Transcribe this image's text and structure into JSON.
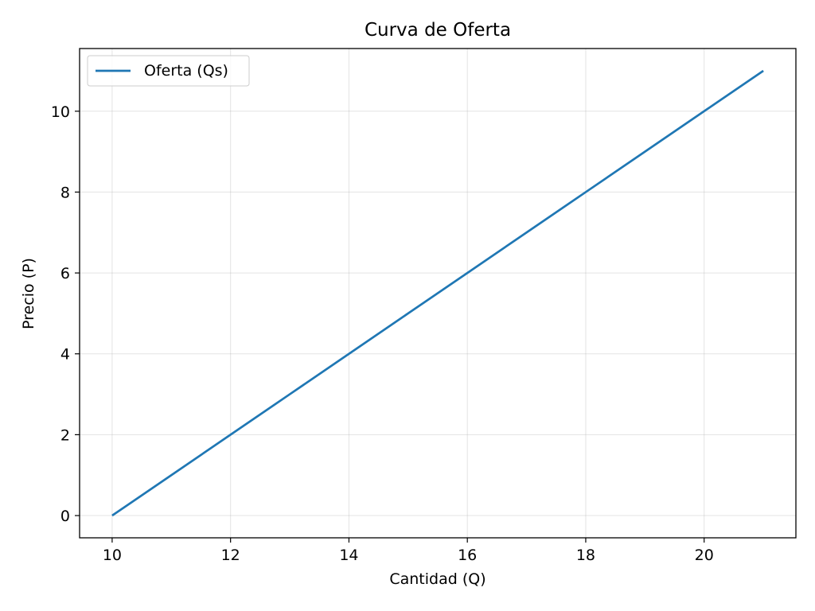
{
  "chart_data": {
    "type": "line",
    "title": "Curva de Oferta",
    "xlabel": "Cantidad (Q)",
    "ylabel": "Precio (P)",
    "xlim": [
      9.45,
      21.55
    ],
    "ylim": [
      -0.55,
      11.55
    ],
    "xticks": [
      10,
      12,
      14,
      16,
      18,
      20
    ],
    "yticks": [
      0,
      2,
      4,
      6,
      8,
      10
    ],
    "xtick_labels": [
      "10",
      "12",
      "14",
      "16",
      "18",
      "20"
    ],
    "ytick_labels": [
      "0",
      "2",
      "4",
      "6",
      "8",
      "10"
    ],
    "grid": true,
    "legend_position": "top-left",
    "series": [
      {
        "name": "Oferta (Qs)",
        "color": "#1f77b4",
        "x": [
          10,
          11,
          12,
          13,
          14,
          15,
          16,
          17,
          18,
          19,
          20,
          21
        ],
        "y": [
          0,
          1,
          2,
          3,
          4,
          5,
          6,
          7,
          8,
          9,
          10,
          11
        ]
      }
    ]
  }
}
